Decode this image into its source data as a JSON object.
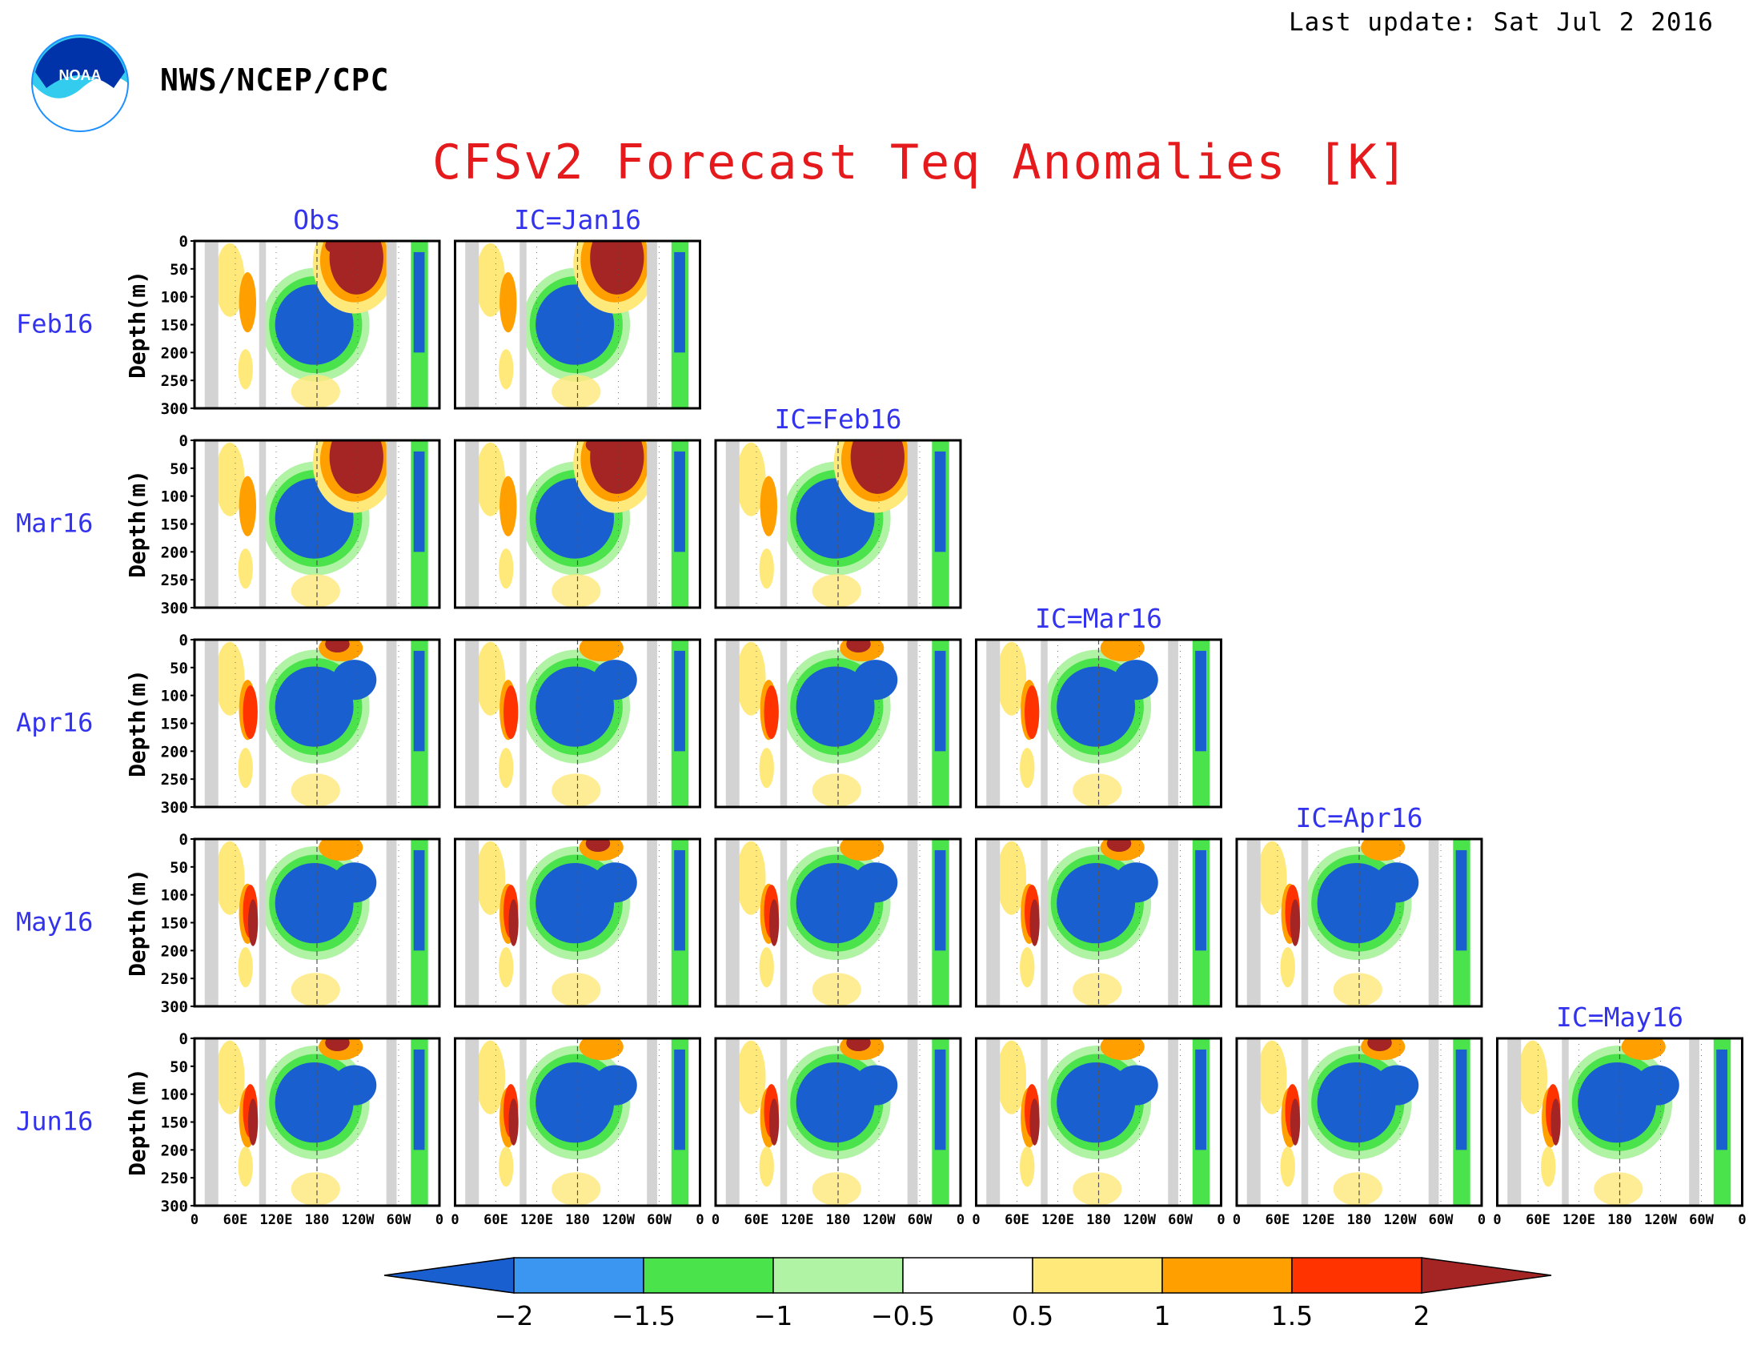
{
  "header": {
    "last_update": "Last update: Sat Jul 2 2016",
    "agency": "NWS/NCEP/CPC",
    "logo_text": "NOAA"
  },
  "chart_data": {
    "type": "heatmap",
    "title": "CFSv2 Forecast Teq Anomalies [K]",
    "ylabel": "Depth(m)",
    "y_ticks": [
      "0",
      "50",
      "100",
      "150",
      "200",
      "250",
      "300"
    ],
    "ylim": [
      0,
      300
    ],
    "x_ticks": [
      "0",
      "60E",
      "120E",
      "180",
      "120W",
      "60W",
      "0"
    ],
    "xlim": [
      0,
      360
    ],
    "columns": [
      "Obs",
      "IC=Jan16",
      "IC=Feb16",
      "IC=Mar16",
      "IC=Apr16",
      "IC=May16"
    ],
    "rows": [
      "Feb16",
      "Mar16",
      "Apr16",
      "May16",
      "Jun16"
    ],
    "colorbar": {
      "labels": [
        "-2",
        "-1.5",
        "-1",
        "-0.5",
        "0.5",
        "1",
        "1.5",
        "2"
      ],
      "colors": [
        "#1a5fd0",
        "#3a96f0",
        "#4be34b",
        "#b0f3a5",
        "#ffffff",
        "#ffe97a",
        "#ffa000",
        "#ff3300",
        "#a52424"
      ]
    },
    "anomaly_colors": {
      "strong_cold": "#1a5fd0",
      "cold": "#3a96f0",
      "cool": "#4be34b",
      "slightly_cool": "#b0f3a5",
      "neutral": "#ffffff",
      "slightly_warm": "#ffe97a",
      "warm": "#ffa000",
      "hot": "#ff3300",
      "strong_hot": "#a52424",
      "land": "#d3d3d3"
    }
  }
}
